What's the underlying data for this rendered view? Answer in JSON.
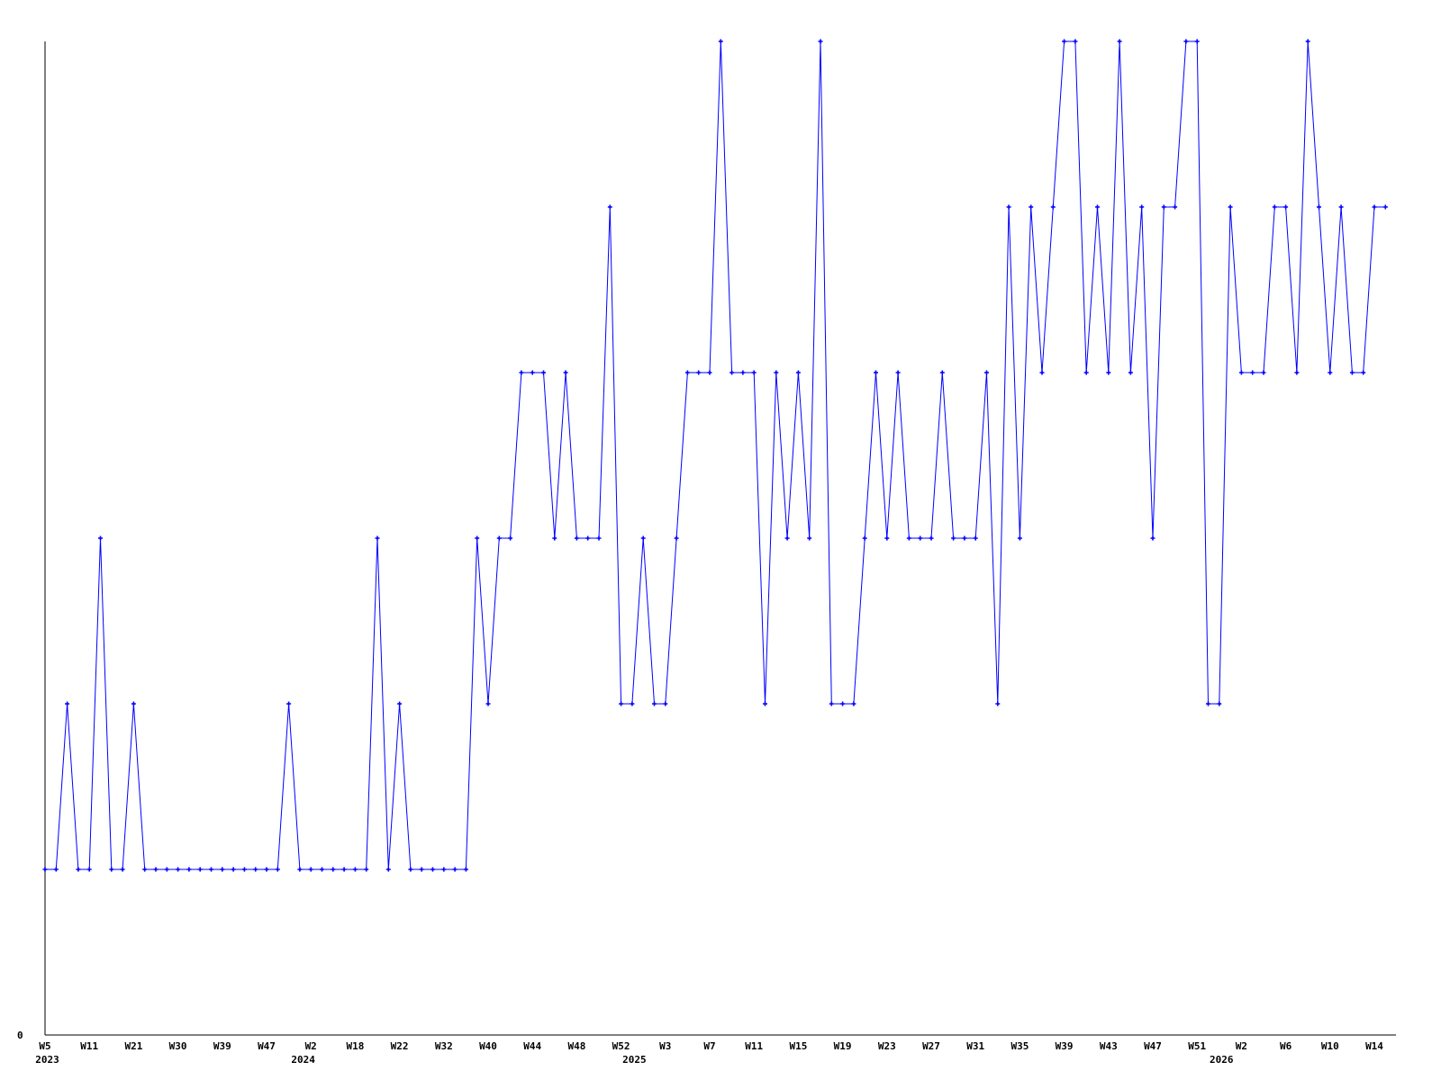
{
  "chart_data": {
    "type": "line",
    "title": "",
    "xlabel": "",
    "ylabel": "",
    "ylim": [
      0,
      6
    ],
    "y_tick_labels": [
      "0"
    ],
    "grid": false,
    "legend": "none",
    "line_color": "#0000ff",
    "axis_color": "#000000",
    "x_tick_labels": [
      "W5",
      "W11",
      "W21",
      "W30",
      "W39",
      "W47",
      "W2",
      "W18",
      "W22",
      "W32",
      "W40",
      "W44",
      "W48",
      "W52",
      "W3",
      "W7",
      "W11",
      "W15",
      "W19",
      "W23",
      "W27",
      "W31",
      "W35",
      "W39",
      "W43",
      "W47",
      "W51",
      "W2",
      "W6",
      "W10",
      "W14"
    ],
    "x_tick_every_n_points": 4,
    "year_labels": [
      "2023",
      "2024",
      "2025",
      "2026"
    ],
    "values": [
      1,
      1,
      2,
      1,
      1,
      3,
      1,
      1,
      2,
      1,
      1,
      1,
      1,
      1,
      1,
      1,
      1,
      1,
      1,
      1,
      1,
      1,
      2,
      1,
      1,
      1,
      1,
      1,
      1,
      1,
      3,
      1,
      2,
      1,
      1,
      1,
      1,
      1,
      1,
      3,
      2,
      3,
      3,
      4,
      4,
      4,
      3,
      4,
      3,
      3,
      3,
      5,
      2,
      2,
      3,
      2,
      2,
      3,
      4,
      4,
      4,
      6,
      4,
      4,
      4,
      2,
      4,
      3,
      4,
      3,
      6,
      2,
      2,
      2,
      3,
      4,
      3,
      4,
      3,
      3,
      3,
      4,
      3,
      3,
      3,
      4,
      2,
      5,
      3,
      5,
      4,
      5,
      6,
      6,
      4,
      5,
      4,
      6,
      4,
      5,
      3,
      5,
      5,
      6,
      6,
      2,
      2,
      5,
      4,
      4,
      4,
      5,
      5,
      4,
      6,
      5,
      4,
      5,
      4,
      4,
      5,
      5
    ]
  }
}
